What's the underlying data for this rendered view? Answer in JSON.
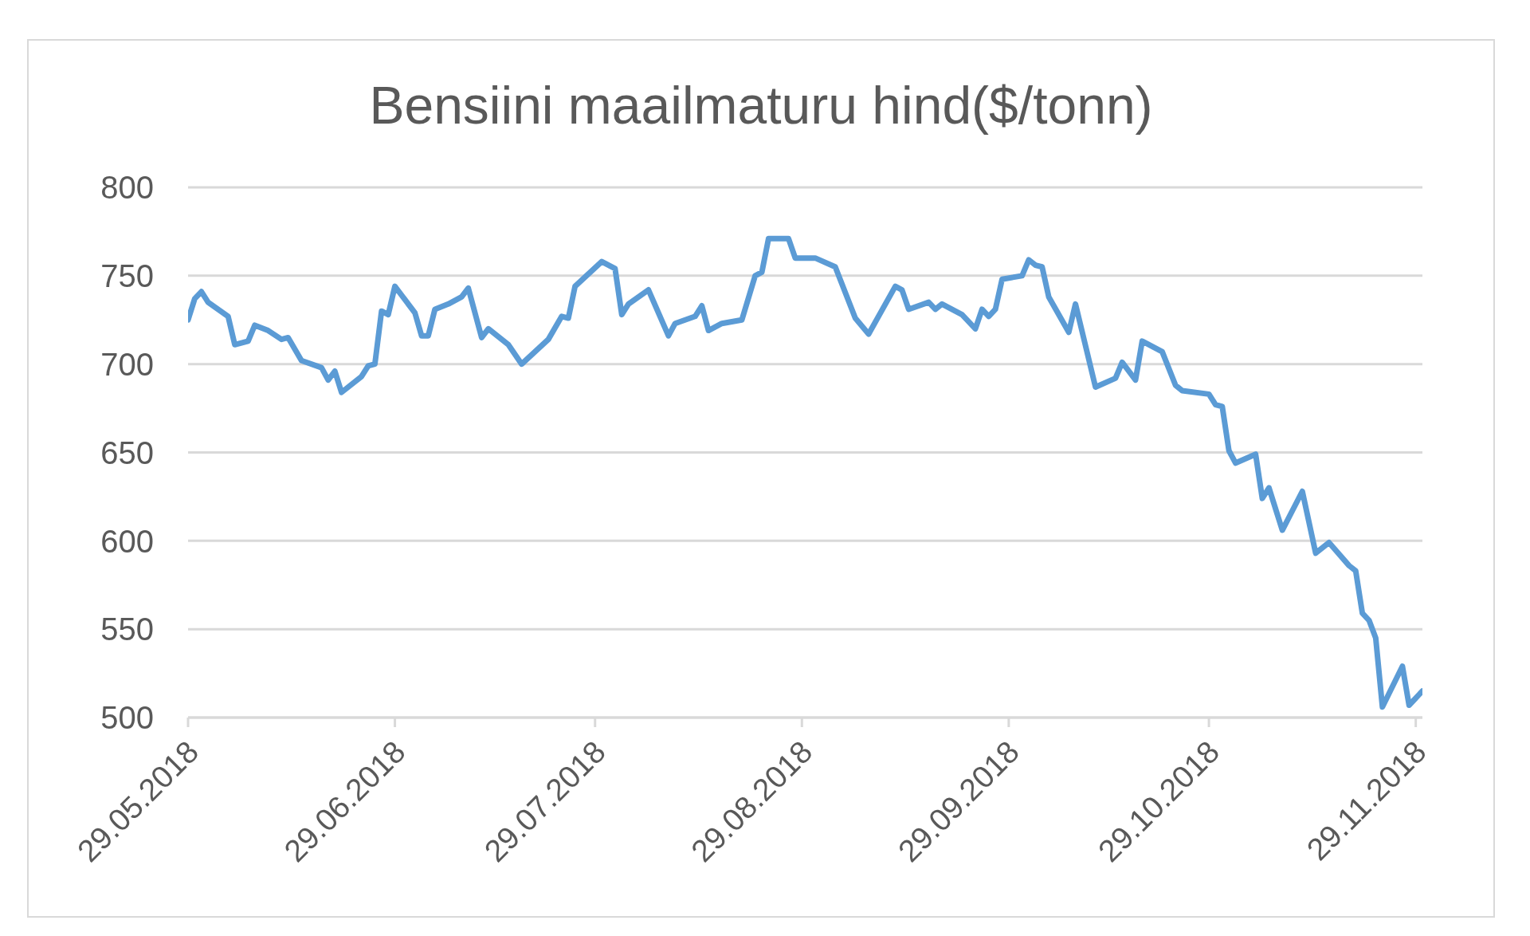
{
  "chart_data": {
    "type": "line",
    "title": "Bensiini maailmaturu hind($/tonn)",
    "x": [
      "2018-05-29",
      "2018-05-30",
      "2018-05-31",
      "2018-06-01",
      "2018-06-04",
      "2018-06-05",
      "2018-06-07",
      "2018-06-08",
      "2018-06-10",
      "2018-06-12",
      "2018-06-13",
      "2018-06-15",
      "2018-06-18",
      "2018-06-19",
      "2018-06-20",
      "2018-06-21",
      "2018-06-24",
      "2018-06-25",
      "2018-06-26",
      "2018-06-27",
      "2018-06-28",
      "2018-06-29",
      "2018-07-02",
      "2018-07-03",
      "2018-07-04",
      "2018-07-05",
      "2018-07-07",
      "2018-07-09",
      "2018-07-10",
      "2018-07-12",
      "2018-07-13",
      "2018-07-16",
      "2018-07-18",
      "2018-07-22",
      "2018-07-24",
      "2018-07-25",
      "2018-07-26",
      "2018-07-28",
      "2018-07-30",
      "2018-08-01",
      "2018-08-02",
      "2018-08-03",
      "2018-08-06",
      "2018-08-09",
      "2018-08-10",
      "2018-08-13",
      "2018-08-14",
      "2018-08-15",
      "2018-08-17",
      "2018-08-20",
      "2018-08-22",
      "2018-08-23",
      "2018-08-24",
      "2018-08-27",
      "2018-08-28",
      "2018-08-31",
      "2018-09-03",
      "2018-09-06",
      "2018-09-08",
      "2018-09-12",
      "2018-09-13",
      "2018-09-14",
      "2018-09-17",
      "2018-09-18",
      "2018-09-19",
      "2018-09-22",
      "2018-09-24",
      "2018-09-25",
      "2018-09-26",
      "2018-09-27",
      "2018-09-28",
      "2018-10-01",
      "2018-10-02",
      "2018-10-03",
      "2018-10-04",
      "2018-10-05",
      "2018-10-08",
      "2018-10-09",
      "2018-10-12",
      "2018-10-15",
      "2018-10-16",
      "2018-10-18",
      "2018-10-19",
      "2018-10-22",
      "2018-10-24",
      "2018-10-25",
      "2018-10-29",
      "2018-10-30",
      "2018-10-31",
      "2018-11-01",
      "2018-11-02",
      "2018-11-05",
      "2018-11-06",
      "2018-11-07",
      "2018-11-09",
      "2018-11-12",
      "2018-11-14",
      "2018-11-16",
      "2018-11-19",
      "2018-11-20",
      "2018-11-21",
      "2018-11-22",
      "2018-11-23",
      "2018-11-24",
      "2018-11-27",
      "2018-11-28",
      "2018-11-30"
    ],
    "series": [
      {
        "color": "#5b9bd5",
        "values": [
          725,
          737,
          741,
          735,
          727,
          711,
          713,
          722,
          719,
          714,
          715,
          702,
          698,
          691,
          696,
          684,
          693,
          699,
          700,
          730,
          728,
          744,
          729,
          716,
          716,
          731,
          734,
          738,
          743,
          715,
          720,
          711,
          700,
          714,
          727,
          726,
          744,
          751,
          758,
          754,
          728,
          734,
          742,
          716,
          723,
          727,
          733,
          719,
          723,
          725,
          750,
          752,
          771,
          771,
          760,
          760,
          755,
          726,
          717,
          744,
          742,
          731,
          735,
          731,
          734,
          728,
          720,
          731,
          727,
          731,
          748,
          750,
          759,
          756,
          755,
          738,
          718,
          734,
          687,
          692,
          701,
          691,
          713,
          707,
          688,
          685,
          683,
          677,
          676,
          651,
          644,
          649,
          624,
          630,
          606,
          628,
          593,
          599,
          586,
          583,
          559,
          555,
          545,
          506,
          529,
          507,
          515
        ]
      }
    ],
    "xlim": [
      "2018-05-29",
      "2018-11-30"
    ],
    "xticks": [
      {
        "value": "2018-05-29",
        "label": "29.05.2018"
      },
      {
        "value": "2018-06-29",
        "label": "29.06.2018"
      },
      {
        "value": "2018-07-29",
        "label": "29.07.2018"
      },
      {
        "value": "2018-08-29",
        "label": "29.08.2018"
      },
      {
        "value": "2018-09-29",
        "label": "29.09.2018"
      },
      {
        "value": "2018-10-29",
        "label": "29.10.2018"
      },
      {
        "value": "2018-11-29",
        "label": "29.11.2018"
      }
    ],
    "ylim": [
      500,
      800
    ],
    "yticks": [
      500,
      550,
      600,
      650,
      700,
      750,
      800
    ],
    "grid": "y",
    "line_style": "solid"
  }
}
